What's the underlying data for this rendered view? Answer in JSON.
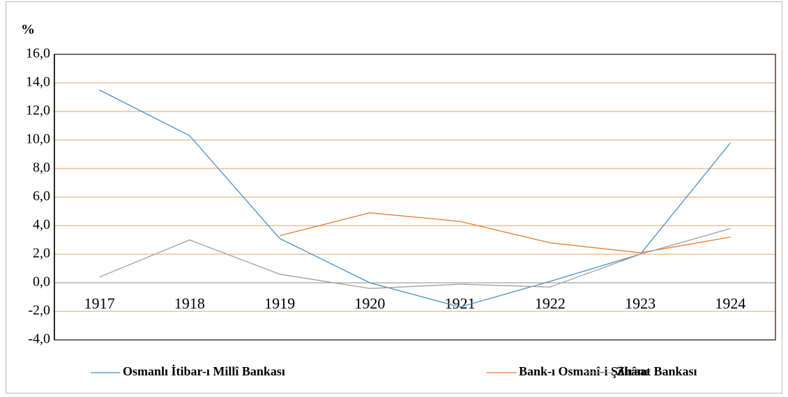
{
  "chart_data": {
    "type": "line",
    "ylabel": "%",
    "categories": [
      "1917",
      "1918",
      "1919",
      "1920",
      "1921",
      "1922",
      "1923",
      "1924"
    ],
    "series": [
      {
        "name": "Osmanlı İtibar-ı Millî Bankası",
        "color": "#4a8fc8",
        "values": [
          13.5,
          10.3,
          3.1,
          0.0,
          -1.7,
          0.1,
          2.0,
          9.8
        ]
      },
      {
        "name": "Bank-ı Osmanî-i Şâhâne",
        "color": "#e87a30",
        "values": [
          null,
          null,
          3.3,
          4.9,
          4.3,
          2.8,
          2.1,
          3.2
        ]
      },
      {
        "name": "Ziraat Bankası",
        "color": "#a0a0a0",
        "values": [
          0.4,
          3.0,
          0.6,
          -0.4,
          -0.1,
          -0.3,
          2.0,
          3.8
        ]
      }
    ],
    "ylim": [
      -4,
      16
    ],
    "yticks": [
      {
        "value": -4,
        "label": "-4,0"
      },
      {
        "value": -2,
        "label": "-2,0"
      },
      {
        "value": 0,
        "label": "0,0"
      },
      {
        "value": 2,
        "label": "2,0"
      },
      {
        "value": 4,
        "label": "4,0"
      },
      {
        "value": 6,
        "label": "6,0"
      },
      {
        "value": 8,
        "label": "8,0"
      },
      {
        "value": 10,
        "label": "10,0"
      },
      {
        "value": 12,
        "label": "12,0"
      },
      {
        "value": 14,
        "label": "14,0"
      },
      {
        "value": 16,
        "label": "16,0"
      }
    ],
    "grid": true,
    "grid_color": "#e8a060",
    "legend": "bottom"
  }
}
